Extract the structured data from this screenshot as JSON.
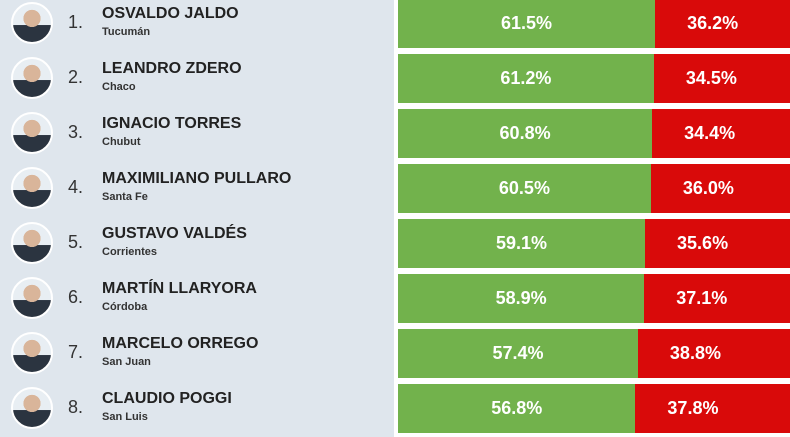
{
  "rows": [
    {
      "rank": "1.",
      "name": "OSVALDO JALDO",
      "province": "Tucumán",
      "approve": "61.5%",
      "disapprove": "36.2%"
    },
    {
      "rank": "2.",
      "name": "LEANDRO ZDERO",
      "province": "Chaco",
      "approve": "61.2%",
      "disapprove": "34.5%"
    },
    {
      "rank": "3.",
      "name": "IGNACIO TORRES",
      "province": "Chubut",
      "approve": "60.8%",
      "disapprove": "34.4%"
    },
    {
      "rank": "4.",
      "name": "MAXIMILIANO PULLARO",
      "province": "Santa Fe",
      "approve": "60.5%",
      "disapprove": "36.0%"
    },
    {
      "rank": "5.",
      "name": "GUSTAVO VALDÉS",
      "province": "Corrientes",
      "approve": "59.1%",
      "disapprove": "35.6%"
    },
    {
      "rank": "6.",
      "name": "MARTÍN LLARYORA",
      "province": "Córdoba",
      "approve": "58.9%",
      "disapprove": "37.1%"
    },
    {
      "rank": "7.",
      "name": "MARCELO ORREGO",
      "province": "San Juan",
      "approve": "57.4%",
      "disapprove": "38.8%"
    },
    {
      "rank": "8.",
      "name": "CLAUDIO POGGI",
      "province": "San Luis",
      "approve": "56.8%",
      "disapprove": "37.8%"
    }
  ]
}
